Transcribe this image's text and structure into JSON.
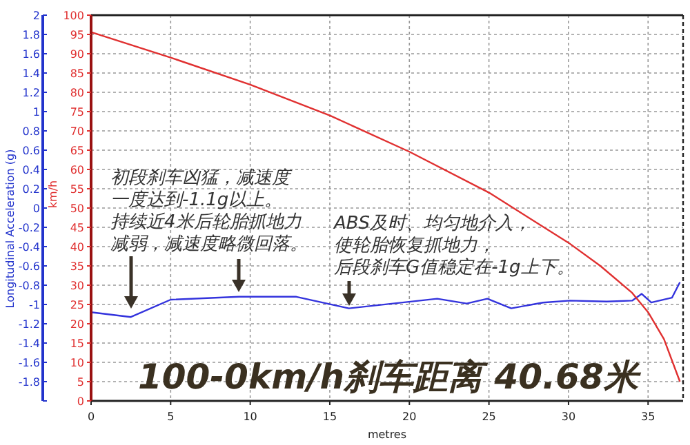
{
  "chart_data": {
    "type": "line",
    "title": "100-0km/h刹车距离 40.68米",
    "xlabel": "metres",
    "ylabel": "Longitudinal Acceleration (g)",
    "y2label": "km/h",
    "annotations": [
      "初段刹车凶猛，减速度",
      "一度达到-1.1g以上。",
      "持续近4米后轮胎抓地力",
      "减弱，减速度略微回落。",
      "ABS及时、均匀地介入，",
      "使轮胎恢复抓地力，",
      "后段刹车G值稳定在-1g上下。"
    ],
    "xlim": [
      0,
      37.2
    ],
    "xticks": [
      0,
      5,
      10,
      15,
      20,
      25,
      30,
      35
    ],
    "ylim": [
      -2,
      2
    ],
    "yticks": [
      2,
      1.8,
      1.6,
      1.4,
      1.2,
      1,
      0.8,
      0.6,
      0.4,
      0.2,
      0,
      -0.2,
      -0.4,
      -0.6,
      -0.8,
      -1,
      -1.2,
      -1.4,
      -1.6,
      -1.8,
      {
        "value": -2,
        "label": null
      }
    ],
    "y2lim": [
      0,
      100
    ],
    "y2ticks": [
      0,
      5,
      10,
      15,
      20,
      25,
      30,
      35,
      40,
      45,
      50,
      55,
      60,
      65,
      70,
      75,
      80,
      85,
      90,
      95,
      100
    ],
    "grid": true,
    "line_style": "solid",
    "marker": "none",
    "series": [
      {
        "color": "#3333dd",
        "x": [
          0,
          2.5,
          5,
          9.3,
          12.9,
          16.2,
          21.75,
          23.6,
          24.9,
          26.4,
          28.4,
          30.1,
          32.4,
          34,
          34.6,
          35.2,
          36.5,
          37
        ],
        "values": [
          -1.08,
          -1.13,
          -0.95,
          -0.92,
          -0.92,
          -1.04,
          -0.94,
          -0.99,
          -0.94,
          -1.04,
          -0.98,
          -0.96,
          -0.97,
          -0.96,
          -0.89,
          -0.98,
          -0.93,
          -0.77
        ]
      },
      {
        "color": "#e03030",
        "axis": "y2",
        "x": [
          0,
          5,
          10,
          15,
          20,
          25,
          30,
          32,
          34,
          35,
          36,
          37
        ],
        "values": [
          95.6,
          89,
          82,
          74,
          64.6,
          54,
          41,
          35,
          28,
          23,
          16,
          5
        ]
      }
    ]
  }
}
